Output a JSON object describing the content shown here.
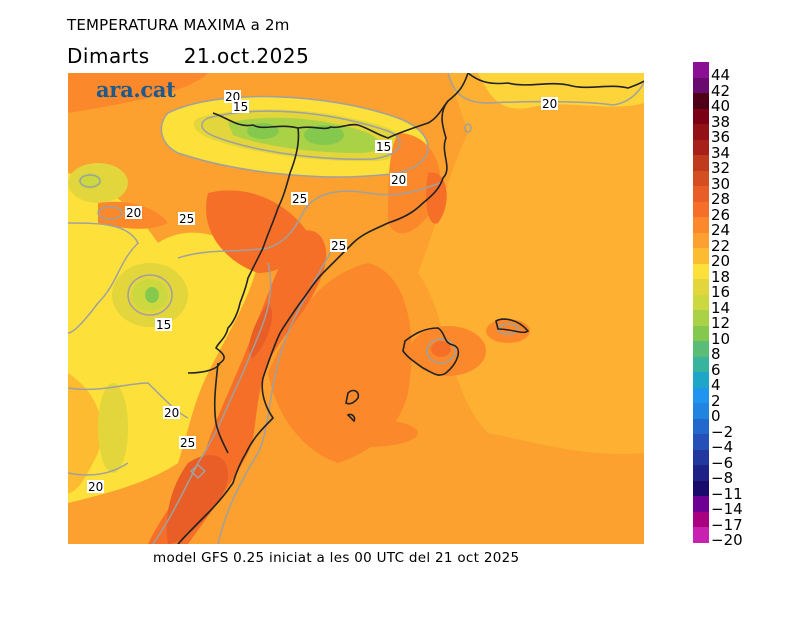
{
  "header": {
    "title": "TEMPERATURA MAXIMA a 2m",
    "day": "Dimarts",
    "date": "21.oct.2025"
  },
  "map": {
    "logo": "ara.cat",
    "variable": "2 m maximum temperature",
    "units": "°C",
    "contour_labels": [
      {
        "text": "20",
        "region": "Pyrenees west"
      },
      {
        "text": "15",
        "region": "Pyrenees west"
      },
      {
        "text": "15",
        "region": "Pyrenees east"
      },
      {
        "text": "20",
        "region": "Pre-Pyrenees Catalonia"
      },
      {
        "text": "20",
        "region": "Gulf of Lion"
      },
      {
        "text": "20",
        "region": "Inland Spain north"
      },
      {
        "text": "25",
        "region": "Ebro valley"
      },
      {
        "text": "25",
        "region": "Lleida"
      },
      {
        "text": "25",
        "region": "Catalan coast"
      },
      {
        "text": "15",
        "region": "Inland Spain highlands"
      },
      {
        "text": "20",
        "region": "Valencia interior"
      },
      {
        "text": "25",
        "region": "Valencia coast"
      },
      {
        "text": "20",
        "region": "Southwest interior"
      }
    ]
  },
  "colorbar": {
    "labels": [
      "44",
      "42",
      "40",
      "38",
      "36",
      "34",
      "32",
      "30",
      "28",
      "26",
      "24",
      "22",
      "20",
      "18",
      "16",
      "14",
      "12",
      "10",
      "8",
      "6",
      "4",
      "2",
      "0",
      "−2",
      "−4",
      "−6",
      "−8",
      "−11",
      "−14",
      "−17",
      "−20"
    ],
    "colors": [
      "#8a0f94",
      "#6b0a6e",
      "#4d0018",
      "#7c0015",
      "#921016",
      "#a8201a",
      "#c03a1e",
      "#d44e22",
      "#e85e26",
      "#f56f28",
      "#fb892b",
      "#fca12f",
      "#fdbb31",
      "#fde13a",
      "#e2d63c",
      "#ccd83f",
      "#a9d247",
      "#84c94e",
      "#59bd77",
      "#37b39e",
      "#1ea6c9",
      "#1f95f0",
      "#2184e0",
      "#2368cd",
      "#2450b8",
      "#22389e",
      "#1e2286",
      "#1a0a6b",
      "#6e0094",
      "#a80080",
      "#c820b0"
    ]
  },
  "footer": {
    "text": "model GFS 0.25 iniciat a les 00 UTC del 21 oct 2025"
  }
}
